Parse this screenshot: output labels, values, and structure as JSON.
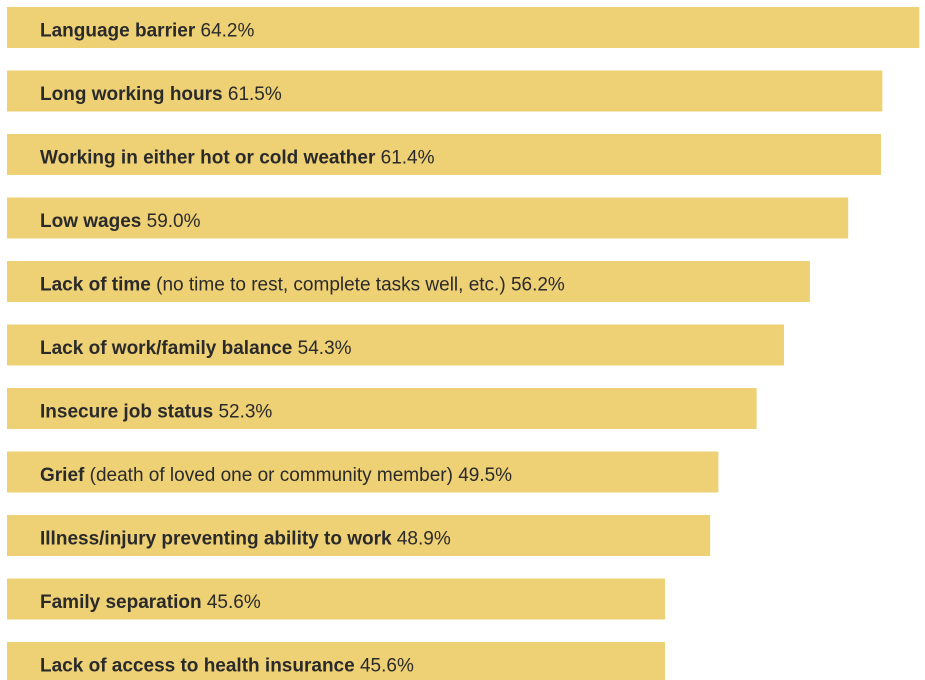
{
  "chart_data": {
    "type": "barh",
    "categories": [
      "Language barrier",
      "Long working hours",
      "Working in either hot or cold weather",
      "Low wages",
      "Lack of time",
      "Lack of work/family balance",
      "Insecure job status",
      "Grief",
      "Illness/injury preventing ability to work",
      "Family separation",
      "Lack of access to health insurance"
    ],
    "details": [
      null,
      null,
      null,
      null,
      "(no time to rest, complete tasks well, etc.)",
      null,
      null,
      "(death of loved one or community member)",
      null,
      null,
      null
    ],
    "values": [
      64.2,
      61.5,
      61.4,
      59.0,
      56.2,
      54.3,
      52.3,
      49.5,
      48.9,
      45.6,
      45.6
    ],
    "value_labels": [
      "64.2%",
      "61.5%",
      "61.4%",
      "59.0%",
      "56.2%",
      "54.3%",
      "52.3%",
      "49.5%",
      "48.9%",
      "45.6%",
      "45.6%"
    ],
    "color": "#eed075",
    "xlim": [
      -2.55,
      64.4
    ]
  }
}
